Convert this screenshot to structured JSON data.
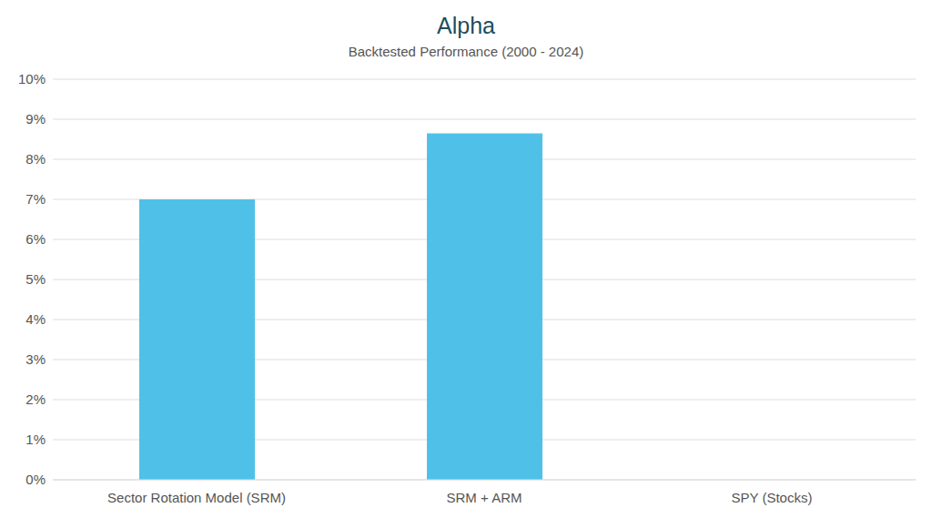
{
  "chart_data": {
    "type": "bar",
    "title": "Alpha",
    "subtitle": "Backtested Performance (2000 - 2024)",
    "categories": [
      "Sector Rotation Model (SRM)",
      "SRM + ARM",
      "SPY (Stocks)"
    ],
    "values": [
      7,
      8.65,
      0
    ],
    "color": "#4fc1e9",
    "ylim": [
      0,
      10
    ],
    "yticks": [
      {
        "value": 0,
        "label": "0%"
      },
      {
        "value": 1,
        "label": "1%"
      },
      {
        "value": 2,
        "label": "2%"
      },
      {
        "value": 3,
        "label": "3%"
      },
      {
        "value": 4,
        "label": "4%"
      },
      {
        "value": 5,
        "label": "5%"
      },
      {
        "value": 6,
        "label": "6%"
      },
      {
        "value": 7,
        "label": "7%"
      },
      {
        "value": 8,
        "label": "8%"
      },
      {
        "value": 9,
        "label": "9%"
      },
      {
        "value": 10,
        "label": "10%"
      }
    ],
    "grid": true
  }
}
